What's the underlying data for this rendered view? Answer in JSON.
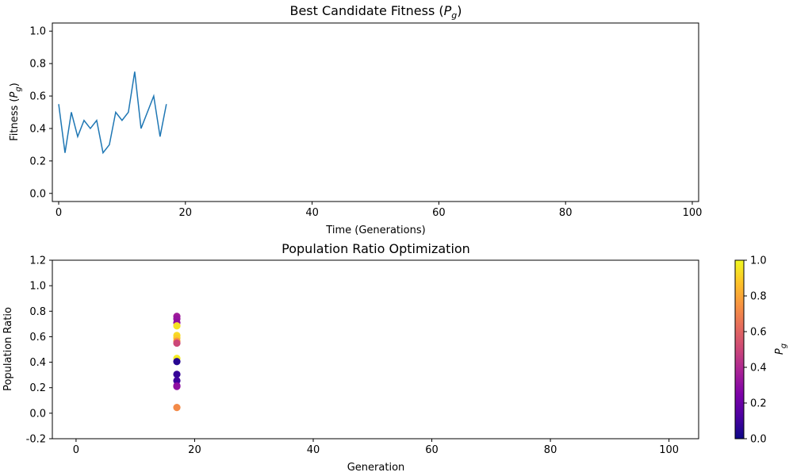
{
  "chart_data": [
    {
      "type": "line",
      "title": "Best Candidate Fitness",
      "title_symbol": "P",
      "title_subscript": "g",
      "xlabel": "Time (Generations)",
      "ylabel": "Fitness",
      "ylabel_symbol": "P",
      "ylabel_subscript": "g",
      "xlim": [
        -1,
        101
      ],
      "ylim": [
        -0.05,
        1.05
      ],
      "xticks": [
        0,
        20,
        40,
        60,
        80,
        100
      ],
      "yticks": [
        0.0,
        0.2,
        0.4,
        0.6,
        0.8,
        1.0
      ],
      "grid": false,
      "line_color": "#1f77b4",
      "x": [
        0,
        1,
        2,
        3,
        4,
        5,
        6,
        7,
        8,
        9,
        10,
        11,
        12,
        13,
        14,
        15,
        16,
        17
      ],
      "y": [
        0.55,
        0.25,
        0.5,
        0.35,
        0.45,
        0.4,
        0.45,
        0.25,
        0.3,
        0.5,
        0.45,
        0.5,
        0.75,
        0.4,
        0.5,
        0.6,
        0.35,
        0.55
      ]
    },
    {
      "type": "scatter",
      "title": "Population Ratio Optimization",
      "xlabel": "Generation",
      "ylabel": "Population Ratio",
      "xlim": [
        -4,
        105
      ],
      "ylim": [
        -0.2,
        1.2
      ],
      "xticks": [
        0,
        20,
        40,
        60,
        80,
        100
      ],
      "yticks": [
        -0.2,
        0.0,
        0.2,
        0.4,
        0.6,
        0.8,
        1.0,
        1.2
      ],
      "grid": false,
      "colormap": "plasma",
      "colorbar": {
        "label_symbol": "P",
        "label_subscript": "g",
        "range": [
          0.0,
          1.0
        ],
        "ticks": [
          0.0,
          0.2,
          0.4,
          0.6,
          0.8,
          1.0
        ],
        "placement": "right"
      },
      "points": [
        {
          "x": 17,
          "y": 0.76,
          "c": 0.35
        },
        {
          "x": 17,
          "y": 0.74,
          "c": 0.32
        },
        {
          "x": 17,
          "y": 0.71,
          "c": 0.3
        },
        {
          "x": 17,
          "y": 0.685,
          "c": 0.95
        },
        {
          "x": 17,
          "y": 0.61,
          "c": 0.93
        },
        {
          "x": 17,
          "y": 0.59,
          "c": 0.9
        },
        {
          "x": 17,
          "y": 0.565,
          "c": 0.75
        },
        {
          "x": 17,
          "y": 0.55,
          "c": 0.5
        },
        {
          "x": 17,
          "y": 0.43,
          "c": 0.97
        },
        {
          "x": 17,
          "y": 0.405,
          "c": 0.05
        },
        {
          "x": 17,
          "y": 0.305,
          "c": 0.08
        },
        {
          "x": 17,
          "y": 0.255,
          "c": 0.1
        },
        {
          "x": 17,
          "y": 0.215,
          "c": 0.25
        },
        {
          "x": 17,
          "y": 0.21,
          "c": 0.3
        },
        {
          "x": 17,
          "y": 0.045,
          "c": 0.72
        }
      ]
    }
  ]
}
